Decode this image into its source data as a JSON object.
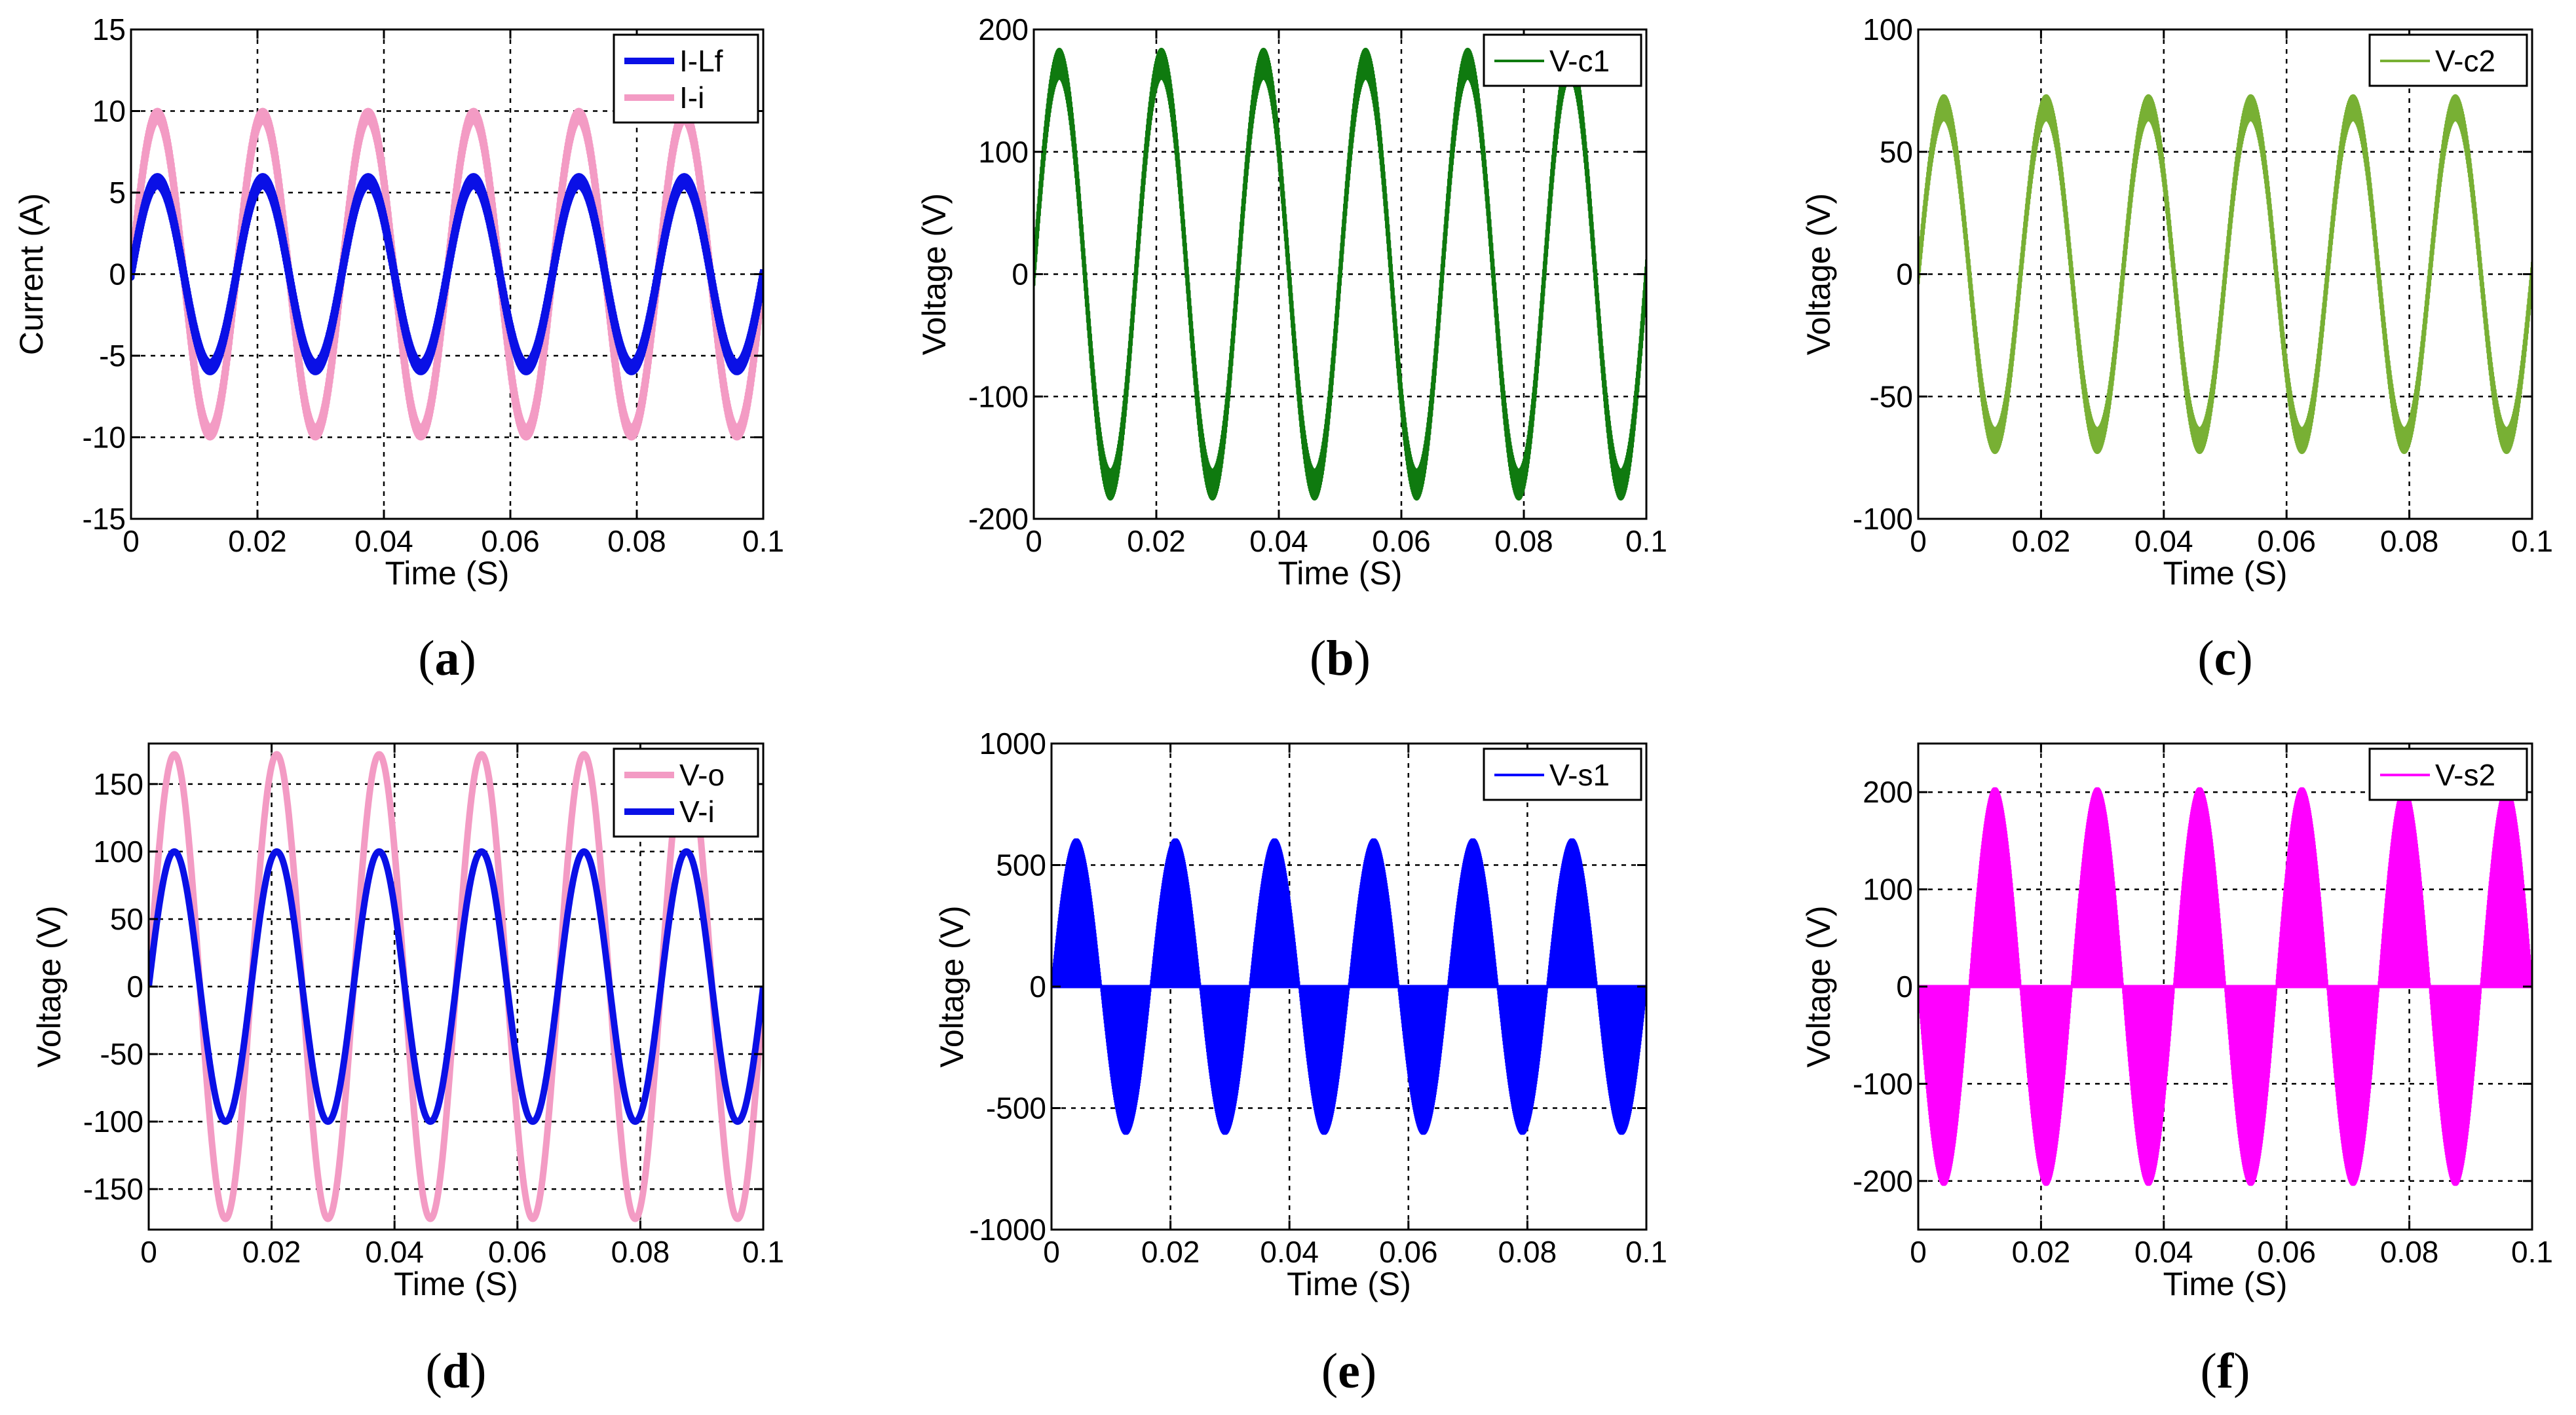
{
  "chart_data": [
    {
      "panel": "a",
      "type": "line",
      "xlabel": "Time (S)",
      "ylabel": "Current (A)",
      "xlim": [
        0,
        0.1
      ],
      "ylim": [
        -15,
        15
      ],
      "xticks": [
        0,
        0.02,
        0.04,
        0.06,
        0.08,
        0.1
      ],
      "xtick_labels": [
        "0",
        "0.02",
        "0.04",
        "0.06",
        "0.08",
        "0.1"
      ],
      "yticks": [
        -15,
        -10,
        -5,
        0,
        5,
        10,
        15
      ],
      "ytick_labels": [
        "-15",
        "-10",
        "-5",
        "0",
        "5",
        "10",
        "15"
      ],
      "grid": true,
      "legend": "top-right",
      "series": [
        {
          "name": "I-i",
          "kind": "sine",
          "amplitude": 9.7,
          "frequency": 60,
          "phase": 0,
          "ripple": 0.3,
          "color": "#f39bc4",
          "width": 10
        },
        {
          "name": "I-Lf",
          "kind": "sine",
          "amplitude": 5.7,
          "frequency": 60,
          "phase": 0,
          "ripple": 0.3,
          "color": "#0a10e6",
          "width": 10
        }
      ],
      "legend_order": [
        "I-Lf",
        "I-i"
      ]
    },
    {
      "panel": "b",
      "type": "line",
      "xlabel": "Time (S)",
      "ylabel": "Voltage (V)",
      "xlim": [
        0,
        0.1
      ],
      "ylim": [
        -200,
        200
      ],
      "xticks": [
        0,
        0.02,
        0.04,
        0.06,
        0.08,
        0.1
      ],
      "xtick_labels": [
        "0",
        "0.02",
        "0.04",
        "0.06",
        "0.08",
        "0.1"
      ],
      "yticks": [
        -200,
        -100,
        0,
        100,
        200
      ],
      "ytick_labels": [
        "-200",
        "-100",
        "0",
        "100",
        "200"
      ],
      "grid": true,
      "legend": "top-right",
      "series": [
        {
          "name": "V-c1",
          "kind": "sine",
          "amplitude": 172,
          "frequency": 60,
          "phase": 0,
          "ripple": 12,
          "color": "#0f7a0f",
          "width": 4
        }
      ],
      "legend_order": [
        "V-c1"
      ]
    },
    {
      "panel": "c",
      "type": "line",
      "xlabel": "Time (S)",
      "ylabel": "Voltage (V)",
      "xlim": [
        0,
        0.1
      ],
      "ylim": [
        -100,
        100
      ],
      "xticks": [
        0,
        0.02,
        0.04,
        0.06,
        0.08,
        0.1
      ],
      "xtick_labels": [
        "0",
        "0.02",
        "0.04",
        "0.06",
        "0.08",
        "0.1"
      ],
      "yticks": [
        -100,
        -50,
        0,
        50,
        100
      ],
      "ytick_labels": [
        "-100",
        "-50",
        "0",
        "50",
        "100"
      ],
      "grid": true,
      "legend": "top-right",
      "series": [
        {
          "name": "V-c2",
          "kind": "sine",
          "amplitude": 68,
          "frequency": 60,
          "phase": 0,
          "ripple": 5,
          "color": "#78b034",
          "width": 4
        }
      ],
      "legend_order": [
        "V-c2"
      ]
    },
    {
      "panel": "d",
      "type": "line",
      "xlabel": "Time (S)",
      "ylabel": "Voltage (V)",
      "xlim": [
        0,
        0.1
      ],
      "ylim": [
        -180,
        180
      ],
      "xticks": [
        0,
        0.02,
        0.04,
        0.06,
        0.08,
        0.1
      ],
      "xtick_labels": [
        "0",
        "0.02",
        "0.04",
        "0.06",
        "0.08",
        "0.1"
      ],
      "yticks": [
        -150,
        -100,
        -50,
        0,
        50,
        100,
        150
      ],
      "ytick_labels": [
        "-150",
        "-100",
        "-50",
        "0",
        "50",
        "100",
        "150"
      ],
      "grid": true,
      "legend": "top-right",
      "series": [
        {
          "name": "V-o",
          "kind": "sine",
          "amplitude": 172,
          "frequency": 60,
          "phase": 0,
          "ripple": 0,
          "color": "#f39bc4",
          "width": 10
        },
        {
          "name": "V-i",
          "kind": "sine",
          "amplitude": 100,
          "frequency": 60,
          "phase": 0,
          "ripple": 0,
          "color": "#0a10e6",
          "width": 10
        }
      ],
      "legend_order": [
        "V-o",
        "V-i"
      ]
    },
    {
      "panel": "e",
      "type": "line",
      "xlabel": "Time (S)",
      "ylabel": "Voltage (V)",
      "xlim": [
        0,
        0.1
      ],
      "ylim": [
        -1000,
        1000
      ],
      "xticks": [
        0,
        0.02,
        0.04,
        0.06,
        0.08,
        0.1
      ],
      "xtick_labels": [
        "0",
        "0.02",
        "0.04",
        "0.06",
        "0.08",
        "0.1"
      ],
      "yticks": [
        -1000,
        -500,
        0,
        500,
        1000
      ],
      "ytick_labels": [
        "-1000",
        "-500",
        "0",
        "500",
        "1000"
      ],
      "grid": true,
      "legend": "top-right",
      "series": [
        {
          "name": "V-s1",
          "kind": "switched",
          "amplitude": 610,
          "frequency": 60,
          "phase": 0,
          "color": "#0000ff",
          "width": 4
        }
      ],
      "legend_order": [
        "V-s1"
      ]
    },
    {
      "panel": "f",
      "type": "line",
      "xlabel": "Time (S)",
      "ylabel": "Voltage (V)",
      "xlim": [
        0,
        0.1
      ],
      "ylim": [
        -250,
        250
      ],
      "xticks": [
        0,
        0.02,
        0.04,
        0.06,
        0.08,
        0.1
      ],
      "xtick_labels": [
        "0",
        "0.02",
        "0.04",
        "0.06",
        "0.08",
        "0.1"
      ],
      "yticks": [
        -200,
        -100,
        0,
        100,
        200
      ],
      "ytick_labels": [
        "-200",
        "-100",
        "0",
        "100",
        "200"
      ],
      "grid": true,
      "legend": "top-right",
      "series": [
        {
          "name": "V-s2",
          "kind": "switched",
          "amplitude": 205,
          "frequency": 60,
          "phase": 180,
          "color": "#ff00ff",
          "width": 4
        }
      ],
      "legend_order": [
        "V-s2"
      ]
    }
  ]
}
